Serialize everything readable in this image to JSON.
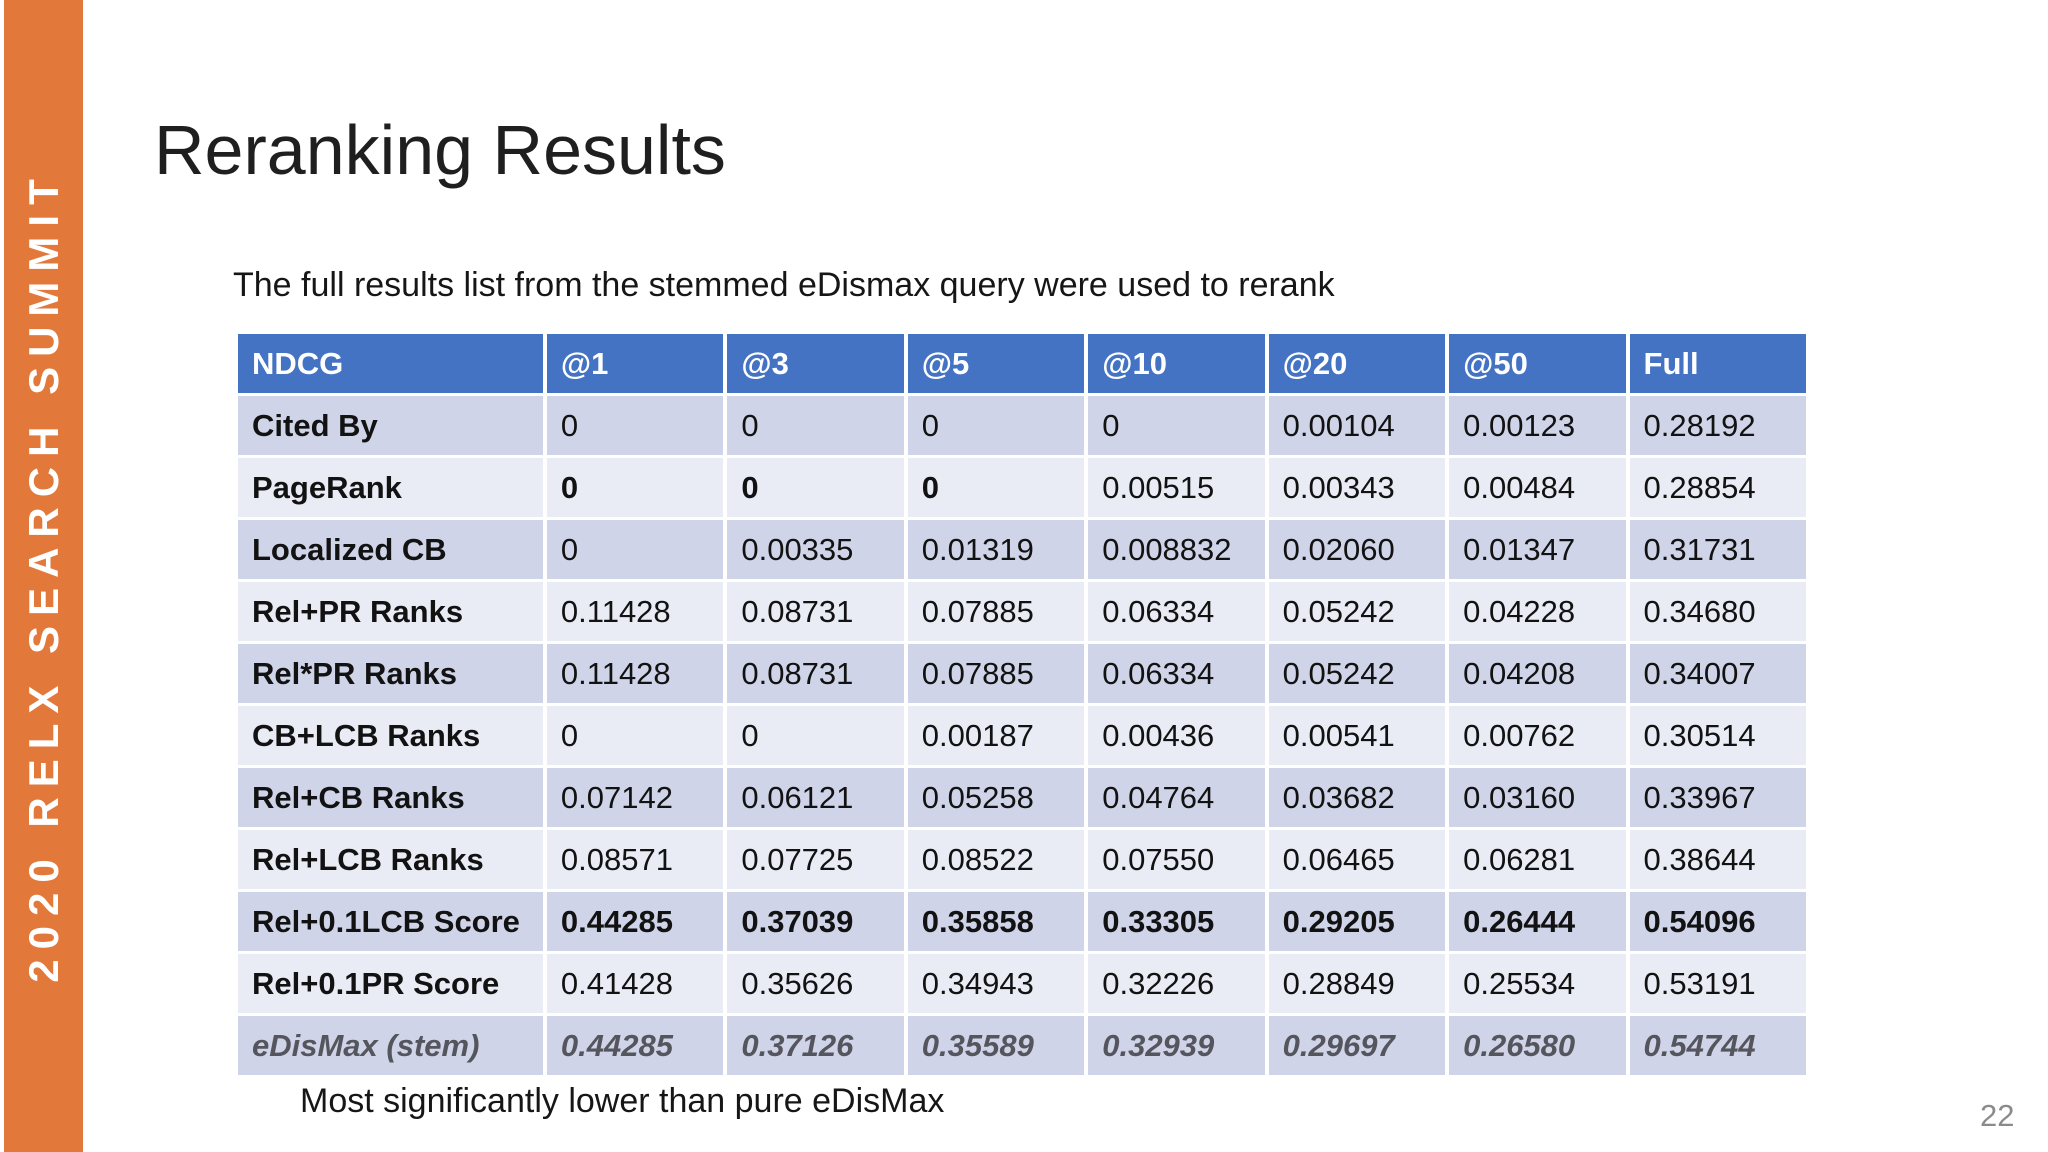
{
  "slide": {
    "title": "Reranking Results",
    "subtitle": "The full results list from the stemmed eDismax query were used to rerank",
    "caption": "Most significantly lower than pure eDisMax",
    "page_number": "22"
  },
  "sidebar": {
    "text": "2020 RELX SEARCH SUMMIT",
    "background_color": "#E2793B",
    "text_color": "#FFFFFF"
  },
  "table": {
    "columns": [
      "NDCG",
      "@1",
      "@3",
      "@5",
      "@10",
      "@20",
      "@50",
      "Full"
    ],
    "rows": [
      {
        "label": "Cited By",
        "values": [
          "0",
          "0",
          "0",
          "0",
          "0.00104",
          "0.00123",
          "0.28192"
        ],
        "emphasis": "none"
      },
      {
        "label": "PageRank",
        "values": [
          "0",
          "0",
          "0",
          "0.00515",
          "0.00343",
          "0.00484",
          "0.28854"
        ],
        "emphasis": "none",
        "bold_value_indices": [
          0,
          1,
          2
        ]
      },
      {
        "label": "Localized CB",
        "values": [
          "0",
          "0.00335",
          "0.01319",
          "0.008832",
          "0.02060",
          "0.01347",
          "0.31731"
        ],
        "emphasis": "none"
      },
      {
        "label": "Rel+PR Ranks",
        "values": [
          "0.11428",
          "0.08731",
          "0.07885",
          "0.06334",
          "0.05242",
          "0.04228",
          "0.34680"
        ],
        "emphasis": "none"
      },
      {
        "label": "Rel*PR Ranks",
        "values": [
          "0.11428",
          "0.08731",
          "0.07885",
          "0.06334",
          "0.05242",
          "0.04208",
          "0.34007"
        ],
        "emphasis": "none"
      },
      {
        "label": "CB+LCB Ranks",
        "values": [
          "0",
          "0",
          "0.00187",
          "0.00436",
          "0.00541",
          "0.00762",
          "0.30514"
        ],
        "emphasis": "none"
      },
      {
        "label": "Rel+CB Ranks",
        "values": [
          "0.07142",
          "0.06121",
          "0.05258",
          "0.04764",
          "0.03682",
          "0.03160",
          "0.33967"
        ],
        "emphasis": "none"
      },
      {
        "label": "Rel+LCB Ranks",
        "values": [
          "0.08571",
          "0.07725",
          "0.08522",
          "0.07550",
          "0.06465",
          "0.06281",
          "0.38644"
        ],
        "emphasis": "none"
      },
      {
        "label": "Rel+0.1LCB Score",
        "values": [
          "0.44285",
          "0.37039",
          "0.35858",
          "0.33305",
          "0.29205",
          "0.26444",
          "0.54096"
        ],
        "emphasis": "bold-values"
      },
      {
        "label": "Rel+0.1PR Score",
        "values": [
          "0.41428",
          "0.35626",
          "0.34943",
          "0.32226",
          "0.28849",
          "0.25534",
          "0.53191"
        ],
        "emphasis": "none"
      },
      {
        "label": "eDisMax (stem)",
        "values": [
          "0.44285",
          "0.37126",
          "0.35589",
          "0.32939",
          "0.29697",
          "0.26580",
          "0.54744"
        ],
        "emphasis": "muted-italic"
      }
    ],
    "colors": {
      "header_bg": "#4473C4",
      "header_text": "#FFFFFF",
      "band_dark": "#CFD4E8",
      "band_light": "#E9EBF5",
      "muted_text": "#55555E"
    }
  }
}
